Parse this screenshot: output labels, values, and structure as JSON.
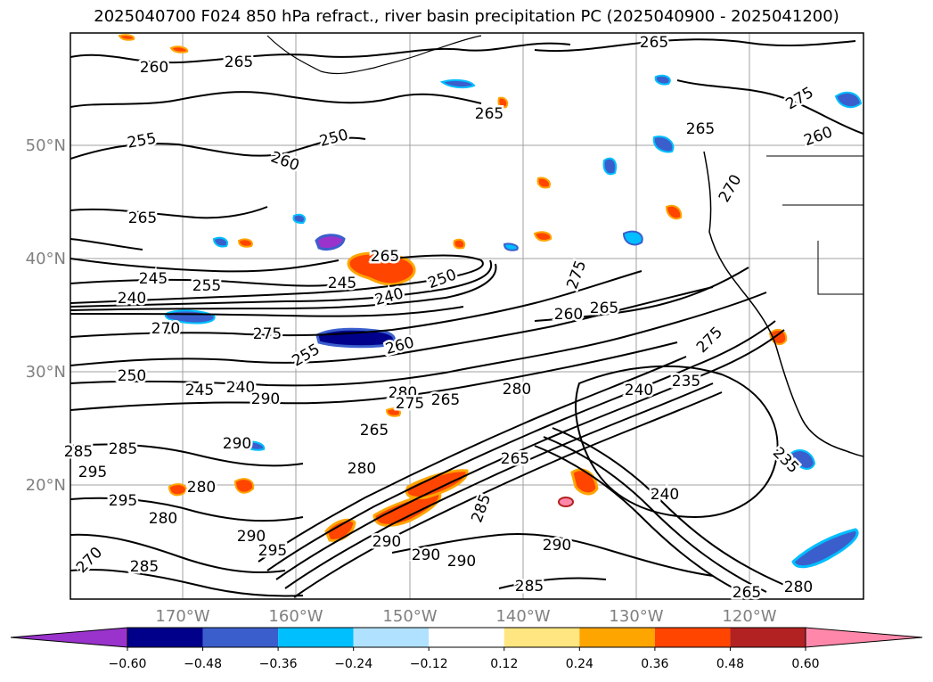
{
  "title": "2025040700 F024 850 hPa refract., river basin precipitation PC (2025040900 - 2025041200)",
  "lat_labels": [
    "50°N",
    "40°N",
    "30°N",
    "20°N"
  ],
  "lon_labels": [
    "170°W",
    "160°W",
    "150°W",
    "140°W",
    "130°W",
    "120°W"
  ],
  "contour_labels": [
    "265",
    "260",
    "265",
    "275",
    "265",
    "255",
    "250",
    "260",
    "265",
    "260",
    "245",
    "265",
    "255",
    "245",
    "250",
    "240",
    "260",
    "265",
    "240",
    "270",
    "275",
    "275",
    "265",
    "275",
    "255",
    "260",
    "250",
    "245",
    "240",
    "280",
    "280",
    "275",
    "265",
    "285",
    "265",
    "240",
    "235",
    "290",
    "295",
    "285",
    "280",
    "280",
    "295",
    "290",
    "285",
    "290",
    "290",
    "290",
    "235",
    "285",
    "270",
    "280",
    "295",
    "285",
    "290",
    "290",
    "280",
    "265",
    "240",
    "265",
    "270"
  ],
  "colorbar": {
    "colors": [
      "#9933cc",
      "#00008b",
      "#3a5fcd",
      "#00bfff",
      "#b0e2ff",
      "#ffffff",
      "#ffe680",
      "#ffa500",
      "#ff4500",
      "#b22222",
      "#ff88aa"
    ],
    "ticks": [
      "−0.60",
      "−0.48",
      "−0.36",
      "−0.24",
      "−0.12",
      "0.12",
      "0.24",
      "0.36",
      "0.48",
      "0.60"
    ]
  }
}
